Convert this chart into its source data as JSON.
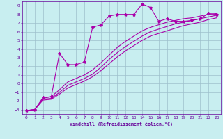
{
  "background_color": "#c8eef0",
  "grid_color": "#9dbfcc",
  "line_color": "#aa00aa",
  "xlabel": "Windchill (Refroidissement éolien,°C)",
  "xlabel_color": "#660099",
  "tick_color": "#660099",
  "spine_color": "#660099",
  "xlim": [
    -0.5,
    23.5
  ],
  "ylim": [
    -3.5,
    9.5
  ],
  "xticks": [
    0,
    1,
    2,
    3,
    4,
    5,
    6,
    7,
    8,
    9,
    10,
    11,
    12,
    13,
    14,
    15,
    16,
    17,
    18,
    19,
    20,
    21,
    22,
    23
  ],
  "yticks": [
    -3,
    -2,
    -1,
    0,
    1,
    2,
    3,
    4,
    5,
    6,
    7,
    8,
    9
  ],
  "line1_x": [
    0,
    1,
    2,
    3,
    4,
    5,
    6,
    7,
    8,
    9,
    10,
    11,
    12,
    13,
    14,
    15,
    16,
    17,
    18,
    19,
    20,
    21,
    22,
    23
  ],
  "line1_y": [
    -3.1,
    -3.0,
    -1.6,
    -1.5,
    3.5,
    2.2,
    2.2,
    2.5,
    6.5,
    6.8,
    7.8,
    8.0,
    8.0,
    8.0,
    9.2,
    8.8,
    7.2,
    7.5,
    7.2,
    7.2,
    7.3,
    7.5,
    8.1,
    8.0
  ],
  "line2_x": [
    0,
    1,
    2,
    3,
    4,
    5,
    6,
    7,
    8,
    9,
    10,
    11,
    12,
    13,
    14,
    15,
    16,
    17,
    18,
    19,
    20,
    21,
    22,
    23
  ],
  "line2_y": [
    -3.1,
    -3.0,
    -1.7,
    -1.5,
    -0.7,
    0.2,
    0.6,
    1.0,
    1.6,
    2.4,
    3.3,
    4.2,
    4.9,
    5.5,
    6.1,
    6.5,
    6.8,
    7.1,
    7.3,
    7.5,
    7.6,
    7.8,
    8.0,
    8.1
  ],
  "line3_x": [
    0,
    1,
    2,
    3,
    4,
    5,
    6,
    7,
    8,
    9,
    10,
    11,
    12,
    13,
    14,
    15,
    16,
    17,
    18,
    19,
    20,
    21,
    22,
    23
  ],
  "line3_y": [
    -3.1,
    -3.0,
    -1.8,
    -1.7,
    -1.0,
    -0.2,
    0.2,
    0.6,
    1.1,
    1.9,
    2.8,
    3.6,
    4.3,
    4.9,
    5.5,
    6.0,
    6.3,
    6.6,
    6.9,
    7.1,
    7.3,
    7.5,
    7.7,
    7.9
  ],
  "line4_x": [
    0,
    1,
    2,
    3,
    4,
    5,
    6,
    7,
    8,
    9,
    10,
    11,
    12,
    13,
    14,
    15,
    16,
    17,
    18,
    19,
    20,
    21,
    22,
    23
  ],
  "line4_y": [
    -3.1,
    -3.0,
    -1.9,
    -1.8,
    -1.2,
    -0.5,
    -0.1,
    0.3,
    0.8,
    1.5,
    2.3,
    3.1,
    3.8,
    4.4,
    5.0,
    5.5,
    5.8,
    6.1,
    6.4,
    6.7,
    6.9,
    7.1,
    7.4,
    7.6
  ]
}
